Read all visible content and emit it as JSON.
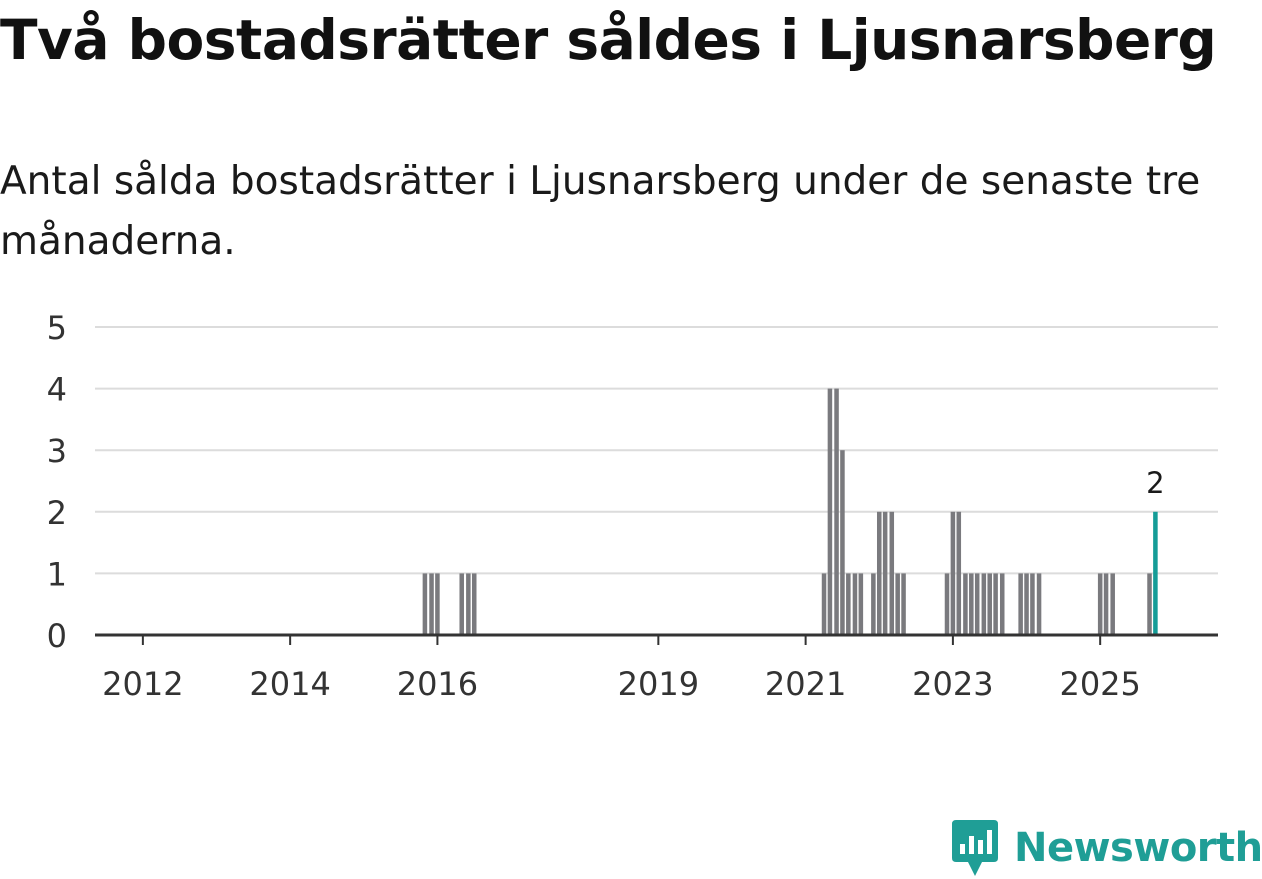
{
  "title": "Två bostadsrätter såldes i Ljusnarsberg",
  "subtitle": "Antal sålda bostadsrätter i Ljusnarsberg under de senaste tre månaderna.",
  "brand": "Newsworthy",
  "colors": {
    "bar": "#7a7a7e",
    "highlight": "#159c97",
    "grid": "#dcdcdc",
    "axis": "#333333"
  },
  "chart_data": {
    "type": "bar",
    "title": "Antal sålda bostadsrätter i Ljusnarsberg",
    "xlabel": "",
    "ylabel": "",
    "ylim": [
      0,
      5
    ],
    "yticks": [
      "0",
      "1",
      "2",
      "3",
      "4",
      "5"
    ],
    "xticks": [
      {
        "label": "2012",
        "x": 2012.0
      },
      {
        "label": "2014",
        "x": 2014.0
      },
      {
        "label": "2016",
        "x": 2016.0
      },
      {
        "label": "2019",
        "x": 2019.0
      },
      {
        "label": "2021",
        "x": 2021.0
      },
      {
        "label": "2023",
        "x": 2023.0
      },
      {
        "label": "2025",
        "x": 2025.0
      }
    ],
    "xlim": [
      2011.35,
      2026.6
    ],
    "bar_width": 0.075,
    "series": [
      {
        "name": "Sålda bostadsrätter",
        "points": [
          {
            "x": 2015.83,
            "value": 1
          },
          {
            "x": 2015.92,
            "value": 1
          },
          {
            "x": 2016.0,
            "value": 1
          },
          {
            "x": 2016.33,
            "value": 1
          },
          {
            "x": 2016.42,
            "value": 1
          },
          {
            "x": 2016.5,
            "value": 1
          },
          {
            "x": 2021.25,
            "value": 1
          },
          {
            "x": 2021.33,
            "value": 4
          },
          {
            "x": 2021.42,
            "value": 4
          },
          {
            "x": 2021.5,
            "value": 3
          },
          {
            "x": 2021.58,
            "value": 1
          },
          {
            "x": 2021.67,
            "value": 1
          },
          {
            "x": 2021.75,
            "value": 1
          },
          {
            "x": 2021.92,
            "value": 1
          },
          {
            "x": 2022.0,
            "value": 2
          },
          {
            "x": 2022.08,
            "value": 2
          },
          {
            "x": 2022.17,
            "value": 2
          },
          {
            "x": 2022.25,
            "value": 1
          },
          {
            "x": 2022.33,
            "value": 1
          },
          {
            "x": 2022.92,
            "value": 1
          },
          {
            "x": 2023.0,
            "value": 2
          },
          {
            "x": 2023.08,
            "value": 2
          },
          {
            "x": 2023.17,
            "value": 1
          },
          {
            "x": 2023.25,
            "value": 1
          },
          {
            "x": 2023.33,
            "value": 1
          },
          {
            "x": 2023.42,
            "value": 1
          },
          {
            "x": 2023.5,
            "value": 1
          },
          {
            "x": 2023.58,
            "value": 1
          },
          {
            "x": 2023.67,
            "value": 1
          },
          {
            "x": 2023.92,
            "value": 1
          },
          {
            "x": 2024.0,
            "value": 1
          },
          {
            "x": 2024.08,
            "value": 1
          },
          {
            "x": 2024.17,
            "value": 1
          },
          {
            "x": 2025.0,
            "value": 1
          },
          {
            "x": 2025.08,
            "value": 1
          },
          {
            "x": 2025.17,
            "value": 1
          },
          {
            "x": 2025.67,
            "value": 1
          },
          {
            "x": 2025.75,
            "value": 2,
            "highlight": true,
            "label": "2"
          }
        ]
      }
    ]
  }
}
